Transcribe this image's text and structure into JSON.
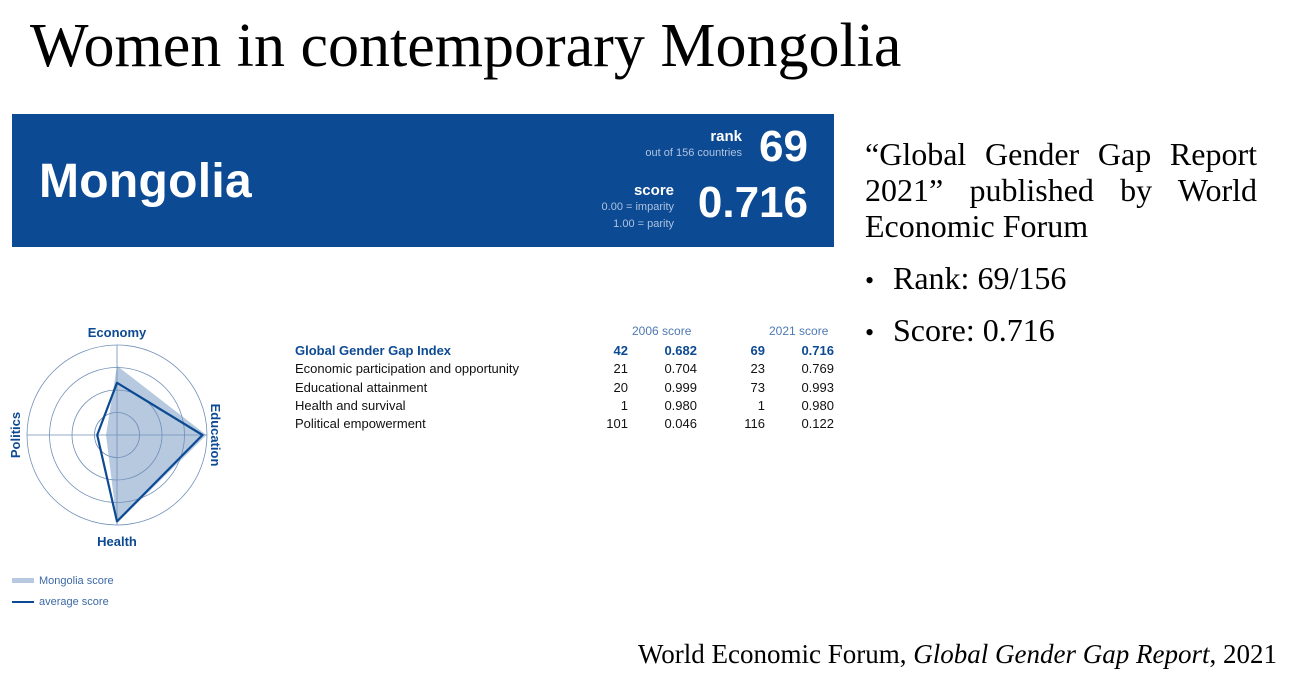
{
  "title": "Women in contemporary Mongolia",
  "banner": {
    "country": "Mongolia",
    "rank_label": "rank",
    "rank_sub": "out of 156 countries",
    "rank_value": "69",
    "score_label": "score",
    "score_sub1": "0.00 = imparity",
    "score_sub2": "1.00 = parity",
    "score_value": "0.716"
  },
  "radar": {
    "axes": [
      "Economy",
      "Education",
      "Health",
      "Politics"
    ],
    "country_scores": [
      0.769,
      0.993,
      0.98,
      0.122
    ],
    "average_scores": [
      0.58,
      0.95,
      0.96,
      0.22
    ],
    "scale_max": 1.0,
    "rings": 4,
    "colors": {
      "fill": "#b7c9df",
      "line": "#0c4a93",
      "grid": "#6f8fb8",
      "label": "#0c4a93"
    }
  },
  "legend": {
    "country": "Mongolia score",
    "average": "average score"
  },
  "table": {
    "headers": {
      "score_2006": "2006 score",
      "score_2021": "2021 score"
    },
    "rows": [
      {
        "label": "Global Gender Gap Index",
        "rank_2006": "42",
        "score_2006": "0.682",
        "rank_2021": "69",
        "score_2021": "0.716"
      },
      {
        "label": "Economic participation and opportunity",
        "rank_2006": "21",
        "score_2006": "0.704",
        "rank_2021": "23",
        "score_2021": "0.769"
      },
      {
        "label": "Educational attainment",
        "rank_2006": "20",
        "score_2006": "0.999",
        "rank_2021": "73",
        "score_2021": "0.993"
      },
      {
        "label": "Health and survival",
        "rank_2006": "1",
        "score_2006": "0.980",
        "rank_2021": "1",
        "score_2021": "0.980"
      },
      {
        "label": "Political empowerment",
        "rank_2006": "101",
        "score_2006": "0.046",
        "rank_2021": "116",
        "score_2021": "0.122"
      }
    ]
  },
  "side": {
    "description": "“Global Gender Gap Report 2021” published by World Economic Forum",
    "bullets": [
      "Rank: 69/156",
      "Score: 0.716"
    ]
  },
  "footer": {
    "prefix": "World Economic Forum, ",
    "italic": "Global Gender Gap Report",
    "suffix": ", 2021"
  },
  "colors": {
    "banner_bg": "#0c4a93",
    "accent": "#0c4a93"
  }
}
